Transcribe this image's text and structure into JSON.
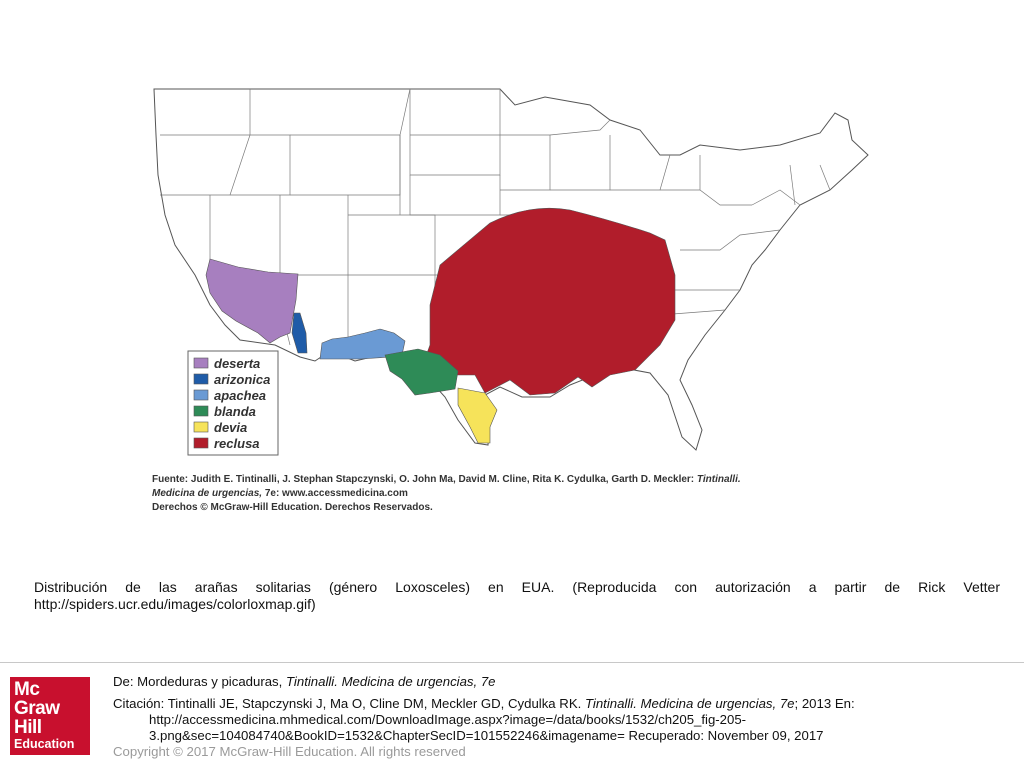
{
  "map": {
    "legend": [
      {
        "label": "deserta",
        "color": "#a77fbf"
      },
      {
        "label": "arizonica",
        "color": "#1f5ca8"
      },
      {
        "label": "apachea",
        "color": "#6a9ad4"
      },
      {
        "label": "blanda",
        "color": "#2e8b57"
      },
      {
        "label": "devia",
        "color": "#f6e35a"
      },
      {
        "label": "reclusa",
        "color": "#b11d2b"
      }
    ],
    "source": {
      "line1_prefix": "Fuente: Judith E. Tintinalli, J. Stephan Stapczynski, O. John Ma, David M. Cline, Rita K. Cydulka, Garth D. Meckler: ",
      "line1_italic": "Tintinalli.",
      "line2_italic": "Medicina de urgencias,",
      "line2_rest": " 7e: www.accessmedicina.com",
      "line3": "Derechos © McGraw-Hill Education. Derechos Reservados."
    }
  },
  "caption": "Distribución de las arañas solitarias (género Loxosceles) en EUA. (Reproducida con autorización a partir de Rick Vetter http://spiders.ucr.edu/images/colorloxmap.gif)",
  "footer": {
    "logo": {
      "line1": "Mc",
      "line2": "Graw",
      "line3": "Hill",
      "line4": "Education"
    },
    "from_prefix": "De: Mordeduras y picaduras, ",
    "from_italic": "Tintinalli. Medicina de urgencias, 7e",
    "citation_prefix": "Citación: Tintinalli JE, Stapczynski J, Ma O, Cline DM, Meckler GD, Cydulka RK. ",
    "citation_italic": "Tintinalli. Medicina de urgencias, 7e",
    "citation_rest": "; 2013 En: http://accessmedicina.mhmedical.com/DownloadImage.aspx?image=/data/books/1532/ch205_fig-205-3.png&sec=104084740&BookID=1532&ChapterSecID=101552246&imagename= Recuperado: November 09, 2017",
    "copyright": "Copyright © 2017 McGraw-Hill Education. All rights reserved"
  }
}
